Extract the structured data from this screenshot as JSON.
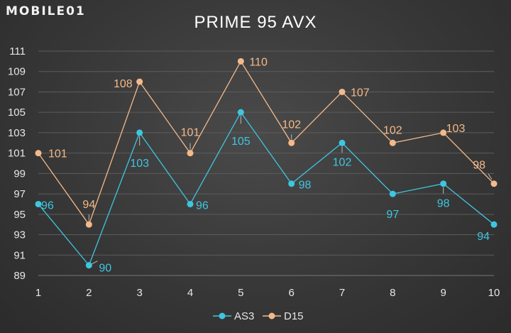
{
  "brand": {
    "logo_text": "MOBILE01"
  },
  "colors": {
    "AS3": "#3ec6e0",
    "D15": "#f4b98a",
    "grid": "#5c5c5c",
    "leader": "#bbbbbb"
  },
  "chart_data": {
    "type": "line",
    "title": "PRIME 95 AVX",
    "xlabel": "",
    "ylabel": "",
    "x": [
      1,
      2,
      3,
      4,
      5,
      6,
      7,
      8,
      9,
      10
    ],
    "x_tick_labels": [
      "1",
      "2",
      "3",
      "4",
      "5",
      "6",
      "7",
      "8",
      "9",
      "10"
    ],
    "y_tick_labels": [
      "89",
      "91",
      "93",
      "95",
      "97",
      "99",
      "101",
      "103",
      "105",
      "107",
      "109",
      "111"
    ],
    "ylim": [
      89,
      111
    ],
    "grid": "horizontal",
    "legend": "bottom-center",
    "series": [
      {
        "name": "AS3",
        "values": [
          96,
          90,
          103,
          96,
          105,
          98,
          102,
          97,
          98,
          94
        ]
      },
      {
        "name": "D15",
        "values": [
          101,
          94,
          108,
          101,
          110,
          102,
          107,
          102,
          103,
          98
        ]
      }
    ]
  }
}
